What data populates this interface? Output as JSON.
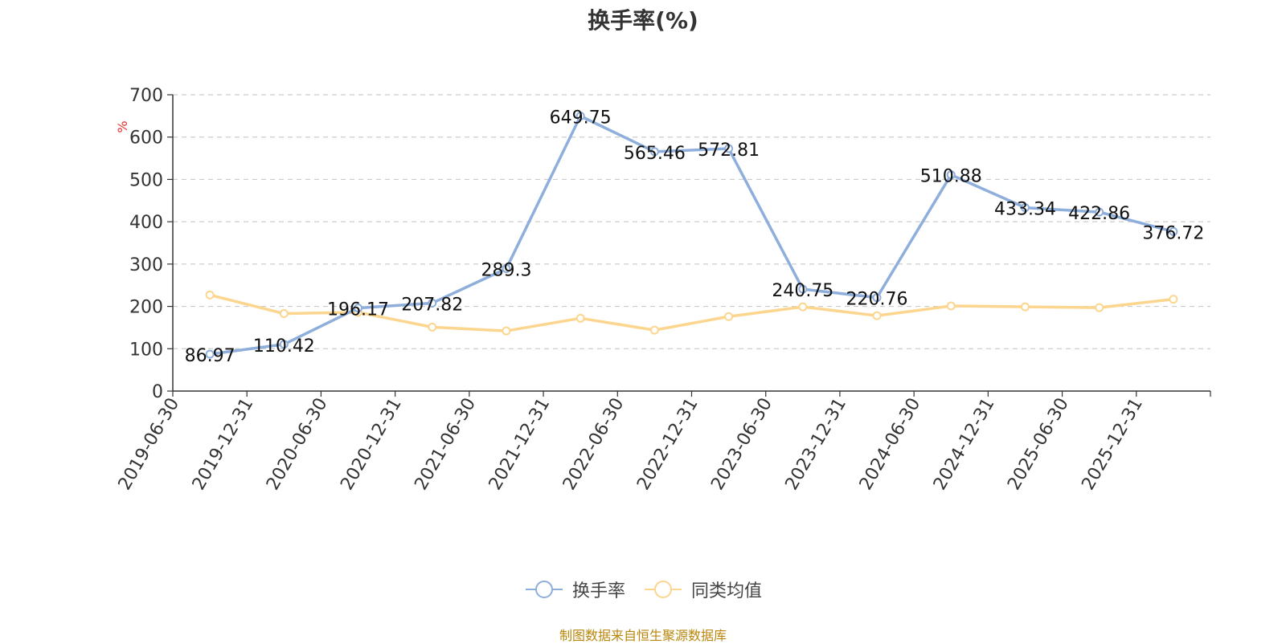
{
  "chart_data": {
    "type": "line",
    "title": "换手率(%)",
    "ylabel": "%",
    "xlabel": "",
    "ylim": [
      0,
      700
    ],
    "yticks": [
      0,
      100,
      200,
      300,
      400,
      500,
      600,
      700
    ],
    "grid": true,
    "legend_position": "bottom-center",
    "categories": [
      "2019-06-30",
      "2019-12-31",
      "2020-06-30",
      "2020-12-31",
      "2021-06-30",
      "2021-12-31",
      "2022-06-30",
      "2022-12-31",
      "2023-06-30",
      "2023-12-31",
      "2024-06-30",
      "2024-12-31",
      "2025-06-30",
      "2025-12-31"
    ],
    "series": [
      {
        "name": "换手率",
        "color": "#8eaedc",
        "values": [
          86.97,
          110.42,
          196.17,
          207.82,
          289.3,
          649.75,
          565.46,
          572.81,
          240.75,
          220.76,
          510.88,
          433.34,
          422.86,
          376.72
        ],
        "labels": [
          "86.97",
          "110.42",
          "196.17",
          "207.82",
          "289.3",
          "649.75",
          "565.46",
          "572.81",
          "240.75",
          "220.76",
          "510.88",
          "433.34",
          "422.86",
          "376.72"
        ]
      },
      {
        "name": "同类均值",
        "color": "#fcd58e",
        "values": [
          227,
          183,
          186,
          151,
          142,
          172,
          144,
          176,
          199,
          178,
          201,
          199,
          197,
          217
        ]
      }
    ]
  },
  "source_note": "制图数据来自恒生聚源数据库"
}
